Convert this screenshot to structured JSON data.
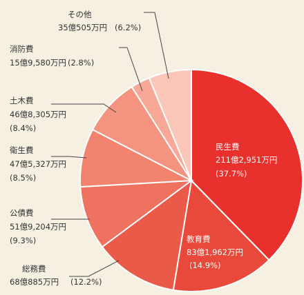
{
  "chart_data": {
    "type": "pie",
    "title": "",
    "slices": [
      {
        "name": "民生費",
        "amount": "211億2,951万円",
        "percent_label": "(37.7%)",
        "value": 37.7,
        "color": "#e8302c"
      },
      {
        "name": "教育費",
        "amount": "83億1,962万円",
        "percent_label": "(14.9%)",
        "value": 14.9,
        "color": "#e8493a"
      },
      {
        "name": "総務費",
        "amount": "68億885万円",
        "percent_label": "(12.2%)",
        "value": 12.2,
        "color": "#ea5a49"
      },
      {
        "name": "公債費",
        "amount": "51億9,204万円",
        "percent_label": "(9.3%)",
        "value": 9.3,
        "color": "#ef7160"
      },
      {
        "name": "衛生費",
        "amount": "47億5,327万円",
        "percent_label": "(8.5%)",
        "value": 8.5,
        "color": "#f2836f"
      },
      {
        "name": "土木費",
        "amount": "46億8,305万円",
        "percent_label": "(8.4%)",
        "value": 8.4,
        "color": "#f4937f"
      },
      {
        "name": "消防費",
        "amount": "15億9,580万円",
        "percent_label": "(2.8%)",
        "value": 2.8,
        "color": "#f7a897"
      },
      {
        "name": "その他",
        "amount": "35億505万円",
        "percent_label": "(6.2%)",
        "value": 6.2,
        "color": "#f9c6b7"
      }
    ]
  }
}
